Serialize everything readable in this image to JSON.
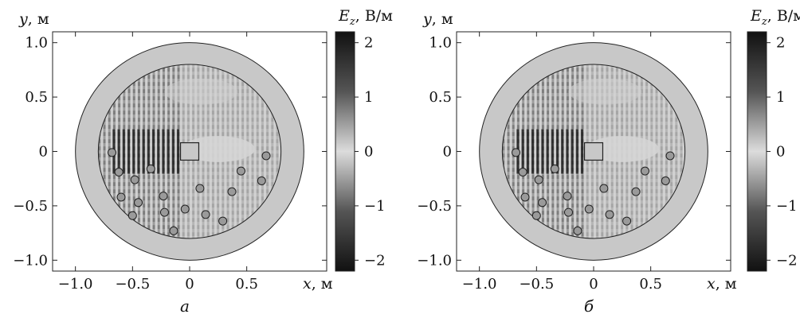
{
  "chart_data": [
    {
      "type": "heatmap",
      "panel_label": "а",
      "xlabel_var": "x",
      "xlabel_unit": ", м",
      "ylabel_var": "y",
      "ylabel_unit": ", м",
      "xlim": [
        -1.2,
        1.2
      ],
      "ylim": [
        -1.1,
        1.1
      ],
      "x_ticks": [
        {
          "value": -1.0,
          "label": "−1.0"
        },
        {
          "value": -0.5,
          "label": "−0.5"
        },
        {
          "value": 0,
          "label": "0"
        },
        {
          "value": 0.5,
          "label": "0.5"
        }
      ],
      "y_ticks": [
        {
          "value": 1.0,
          "label": "1.0"
        },
        {
          "value": 0.5,
          "label": "0.5"
        },
        {
          "value": 0,
          "label": "0"
        },
        {
          "value": -0.5,
          "label": "−0.5"
        },
        {
          "value": -1.0,
          "label": "−1.0"
        }
      ],
      "outer_radius": 1.0,
      "inner_radius": 0.8,
      "source_box": {
        "x": 0,
        "y": 0,
        "half_size": 0.08
      },
      "scatterers": [
        [
          -0.68,
          -0.01
        ],
        [
          -0.62,
          -0.19
        ],
        [
          -0.48,
          -0.26
        ],
        [
          -0.34,
          -0.16
        ],
        [
          -0.6,
          -0.42
        ],
        [
          -0.45,
          -0.47
        ],
        [
          -0.5,
          -0.59
        ],
        [
          -0.23,
          -0.41
        ],
        [
          -0.22,
          -0.56
        ],
        [
          -0.04,
          -0.53
        ],
        [
          0.09,
          -0.34
        ],
        [
          0.14,
          -0.58
        ],
        [
          -0.14,
          -0.73
        ],
        [
          0.29,
          -0.64
        ],
        [
          0.37,
          -0.37
        ],
        [
          0.45,
          -0.18
        ],
        [
          0.63,
          -0.27
        ],
        [
          0.67,
          -0.04
        ]
      ],
      "colorbar": {
        "label_var": "E",
        "label_sub": "z",
        "label_unit": ", В/м",
        "range": [
          -2.2,
          2.2
        ],
        "ticks": [
          {
            "value": 2,
            "label": "2"
          },
          {
            "value": 1,
            "label": "1"
          },
          {
            "value": 0,
            "label": "0"
          },
          {
            "value": -1,
            "label": "−1"
          },
          {
            "value": -2,
            "label": "−2"
          }
        ]
      }
    },
    {
      "type": "heatmap",
      "panel_label": "б",
      "xlabel_var": "x",
      "xlabel_unit": ", м",
      "ylabel_var": "y",
      "ylabel_unit": ", м",
      "xlim": [
        -1.2,
        1.2
      ],
      "ylim": [
        -1.1,
        1.1
      ],
      "x_ticks": [
        {
          "value": -1.0,
          "label": "−1.0"
        },
        {
          "value": -0.5,
          "label": "−0.5"
        },
        {
          "value": 0,
          "label": "0"
        },
        {
          "value": 0.5,
          "label": "0.5"
        }
      ],
      "y_ticks": [
        {
          "value": 1.0,
          "label": "1.0"
        },
        {
          "value": 0.5,
          "label": "0.5"
        },
        {
          "value": 0,
          "label": "0"
        },
        {
          "value": -0.5,
          "label": "−0.5"
        },
        {
          "value": -1.0,
          "label": "−1.0"
        }
      ],
      "outer_radius": 1.0,
      "inner_radius": 0.8,
      "source_box": {
        "x": 0,
        "y": 0,
        "half_size": 0.08
      },
      "scatterers": [
        [
          -0.68,
          -0.01
        ],
        [
          -0.62,
          -0.19
        ],
        [
          -0.48,
          -0.26
        ],
        [
          -0.34,
          -0.16
        ],
        [
          -0.6,
          -0.42
        ],
        [
          -0.45,
          -0.47
        ],
        [
          -0.5,
          -0.59
        ],
        [
          -0.23,
          -0.41
        ],
        [
          -0.22,
          -0.56
        ],
        [
          -0.04,
          -0.53
        ],
        [
          0.09,
          -0.34
        ],
        [
          0.14,
          -0.58
        ],
        [
          -0.14,
          -0.73
        ],
        [
          0.29,
          -0.64
        ],
        [
          0.37,
          -0.37
        ],
        [
          0.45,
          -0.18
        ],
        [
          0.63,
          -0.27
        ],
        [
          0.67,
          -0.04
        ]
      ],
      "colorbar": {
        "label_var": "E",
        "label_sub": "z",
        "label_unit": ", В/м",
        "range": [
          -2.2,
          2.2
        ],
        "ticks": [
          {
            "value": 2,
            "label": "2"
          },
          {
            "value": 1,
            "label": "1"
          },
          {
            "value": 0,
            "label": "0"
          },
          {
            "value": -1,
            "label": "−1"
          },
          {
            "value": -2,
            "label": "−2"
          }
        ]
      }
    }
  ]
}
